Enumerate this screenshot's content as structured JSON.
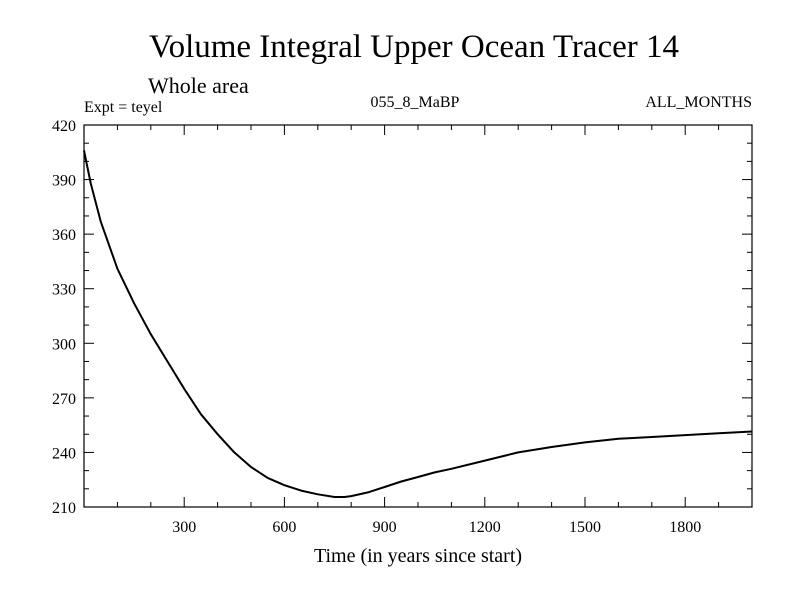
{
  "chart_data": {
    "type": "line",
    "title": "Volume Integral Upper Ocean Tracer 14",
    "subtitle": "Whole area",
    "experiment": "Expt = teyel",
    "run_label": "055_8_MaBP",
    "months_label": "ALL_MONTHS",
    "xlabel": "Time (in years since start)",
    "ylabel": "",
    "xlim": [
      0,
      2000
    ],
    "ylim": [
      210,
      420
    ],
    "xticks": [
      300,
      600,
      900,
      1200,
      1500,
      1800
    ],
    "xtick_labels": [
      "300",
      "600",
      "900",
      "1200",
      "1500",
      "1800"
    ],
    "yticks": [
      210,
      240,
      270,
      300,
      330,
      360,
      390,
      420
    ],
    "ytick_labels": [
      "210",
      "240",
      "270",
      "300",
      "330",
      "360",
      "390",
      "420"
    ],
    "x_minor_step": 100,
    "y_minor_step": 10,
    "grid": false,
    "series": [
      {
        "name": "Tracer 14",
        "x": [
          0,
          20,
          50,
          100,
          150,
          200,
          250,
          300,
          350,
          400,
          450,
          500,
          550,
          600,
          650,
          700,
          750,
          780,
          800,
          850,
          900,
          950,
          1000,
          1050,
          1100,
          1200,
          1300,
          1400,
          1500,
          1600,
          1700,
          1800,
          1900,
          2000
        ],
        "values": [
          406,
          388,
          367,
          341,
          322,
          305,
          290,
          275,
          261,
          250,
          240,
          232,
          226,
          222,
          219,
          217,
          215.5,
          215.5,
          216,
          218,
          221,
          224,
          226.5,
          229,
          231,
          235.5,
          240,
          243,
          245.5,
          247.5,
          248.5,
          249.5,
          250.5,
          251.5
        ]
      }
    ]
  }
}
